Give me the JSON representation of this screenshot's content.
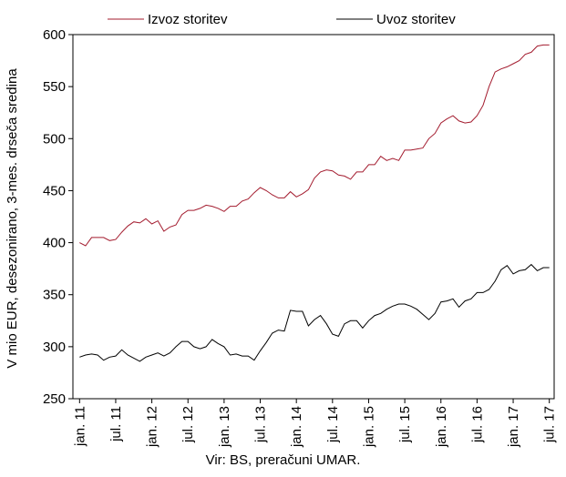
{
  "chart_data": {
    "type": "line",
    "ylabel": "V mio EUR, desezonirano, 3-mes. drseča sredina",
    "ylim": [
      250,
      600
    ],
    "yticks": [
      250,
      300,
      350,
      400,
      450,
      500,
      550,
      600
    ],
    "grid": false,
    "legend_position": "top",
    "x": [
      "jan. 11",
      "feb. 11",
      "mar. 11",
      "apr. 11",
      "maj 11",
      "jun. 11",
      "jul. 11",
      "avg. 11",
      "sep. 11",
      "okt. 11",
      "nov. 11",
      "dec. 11",
      "jan. 12",
      "feb. 12",
      "mar. 12",
      "apr. 12",
      "maj 12",
      "jun. 12",
      "jul. 12",
      "avg. 12",
      "sep. 12",
      "okt. 12",
      "nov. 12",
      "dec. 12",
      "jan. 13",
      "feb. 13",
      "mar. 13",
      "apr. 13",
      "maj 13",
      "jun. 13",
      "jul. 13",
      "avg. 13",
      "sep. 13",
      "okt. 13",
      "nov. 13",
      "dec. 13",
      "jan. 14",
      "feb. 14",
      "mar. 14",
      "apr. 14",
      "maj 14",
      "jun. 14",
      "jul. 14",
      "avg. 14",
      "sep. 14",
      "okt. 14",
      "nov. 14",
      "dec. 14",
      "jan. 15",
      "feb. 15",
      "mar. 15",
      "apr. 15",
      "maj 15",
      "jun. 15",
      "jul. 15",
      "avg. 15",
      "sep. 15",
      "okt. 15",
      "nov. 15",
      "dec. 15",
      "jan. 16",
      "feb. 16",
      "mar. 16",
      "apr. 16",
      "maj 16",
      "jun. 16",
      "jul. 16",
      "avg. 16",
      "sep. 16",
      "okt. 16",
      "nov. 16",
      "dec. 16",
      "jan. 17",
      "feb. 17",
      "mar. 17",
      "apr. 17",
      "maj 17",
      "jun. 17",
      "jul. 17"
    ],
    "tick_labels": [
      "jan. 11",
      "jul. 11",
      "jan. 12",
      "jul. 12",
      "jan. 13",
      "jul. 13",
      "jan. 14",
      "jul. 14",
      "jan. 15",
      "jul. 15",
      "jan. 16",
      "jul. 16",
      "jan. 17",
      "jul. 17"
    ],
    "series": [
      {
        "name": "Izvoz storitev",
        "color": "#a31b2e",
        "values": [
          400,
          397,
          405,
          405,
          405,
          402,
          403,
          410,
          416,
          420,
          419,
          423,
          418,
          421,
          411,
          415,
          417,
          427,
          431,
          431,
          433,
          436,
          435,
          433,
          430,
          435,
          435,
          440,
          442,
          448,
          453,
          450,
          446,
          443,
          443,
          449,
          444,
          447,
          451,
          462,
          468,
          470,
          469,
          465,
          464,
          461,
          468,
          468,
          475,
          475,
          483,
          479,
          481,
          479,
          489,
          489,
          490,
          491,
          500,
          505,
          515,
          519,
          522,
          517,
          515,
          516,
          522,
          532,
          550,
          564,
          567,
          569,
          572,
          575,
          581,
          583,
          589,
          590,
          590
        ]
      },
      {
        "name": "Uvoz storitev",
        "color": "#000000",
        "values": [
          290,
          292,
          293,
          292,
          287,
          290,
          291,
          297,
          292,
          289,
          286,
          290,
          292,
          294,
          291,
          294,
          300,
          305,
          305,
          300,
          298,
          300,
          307,
          303,
          300,
          292,
          293,
          291,
          291,
          287,
          296,
          304,
          313,
          316,
          315,
          335,
          334,
          334,
          320,
          326,
          330,
          322,
          312,
          310,
          322,
          325,
          325,
          318,
          325,
          330,
          332,
          336,
          339,
          341,
          341,
          339,
          336,
          331,
          326,
          332,
          343,
          344,
          346,
          338,
          344,
          346,
          352,
          352,
          355,
          363,
          374,
          378,
          370,
          373,
          374,
          379,
          373,
          376,
          376
        ]
      }
    ]
  },
  "source": "Vir: BS, preračuni UMAR."
}
